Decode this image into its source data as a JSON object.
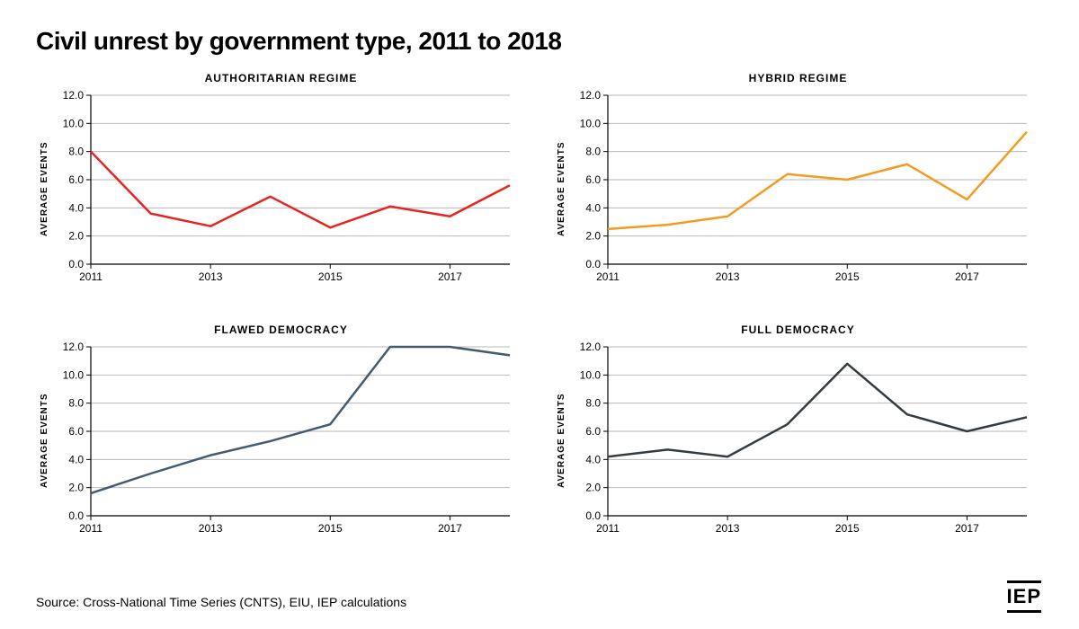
{
  "title": "Civil unrest by government type, 2011 to 2018",
  "source": "Source: Cross-National Time Series (CNTS), EIU, IEP calculations",
  "logo": "IEP",
  "ylabel": "AVERAGE EVENTS",
  "shared": {
    "years": [
      2011,
      2012,
      2013,
      2014,
      2015,
      2016,
      2017,
      2018
    ],
    "xtick_labels": [
      "2011",
      "2013",
      "2015",
      "2017"
    ],
    "xtick_years": [
      2011,
      2013,
      2015,
      2017
    ],
    "ylim": [
      0,
      12
    ],
    "yticks": [
      0.0,
      2.0,
      4.0,
      6.0,
      8.0,
      10.0,
      12.0
    ],
    "ytick_labels": [
      "0.0",
      "2.0",
      "4.0",
      "6.0",
      "8.0",
      "10.0",
      "12.0"
    ],
    "grid_color": "#b8b8b8",
    "axis_color": "#000000",
    "tick_fontsize": 12,
    "line_width": 2.5,
    "background": "#ffffff"
  },
  "panels": [
    {
      "id": "authoritarian",
      "title": "AUTHORITARIAN REGIME",
      "color": "#e52522",
      "values": [
        8.0,
        3.6,
        2.7,
        4.8,
        2.6,
        4.1,
        3.4,
        5.6
      ]
    },
    {
      "id": "hybrid",
      "title": "HYBRID REGIME",
      "color": "#f39b1e",
      "values": [
        2.5,
        2.8,
        3.4,
        6.4,
        6.0,
        7.1,
        4.6,
        9.4
      ]
    },
    {
      "id": "flawed",
      "title": "FLAWED DEMOCRACY",
      "color": "#455a6e",
      "values": [
        1.6,
        3.0,
        4.3,
        5.3,
        6.5,
        12.0,
        12.0,
        11.4
      ]
    },
    {
      "id": "full",
      "title": "FULL DEMOCRACY",
      "color": "#333a40",
      "values": [
        4.2,
        4.7,
        4.2,
        6.5,
        10.8,
        7.2,
        6.0,
        7.0
      ]
    }
  ]
}
